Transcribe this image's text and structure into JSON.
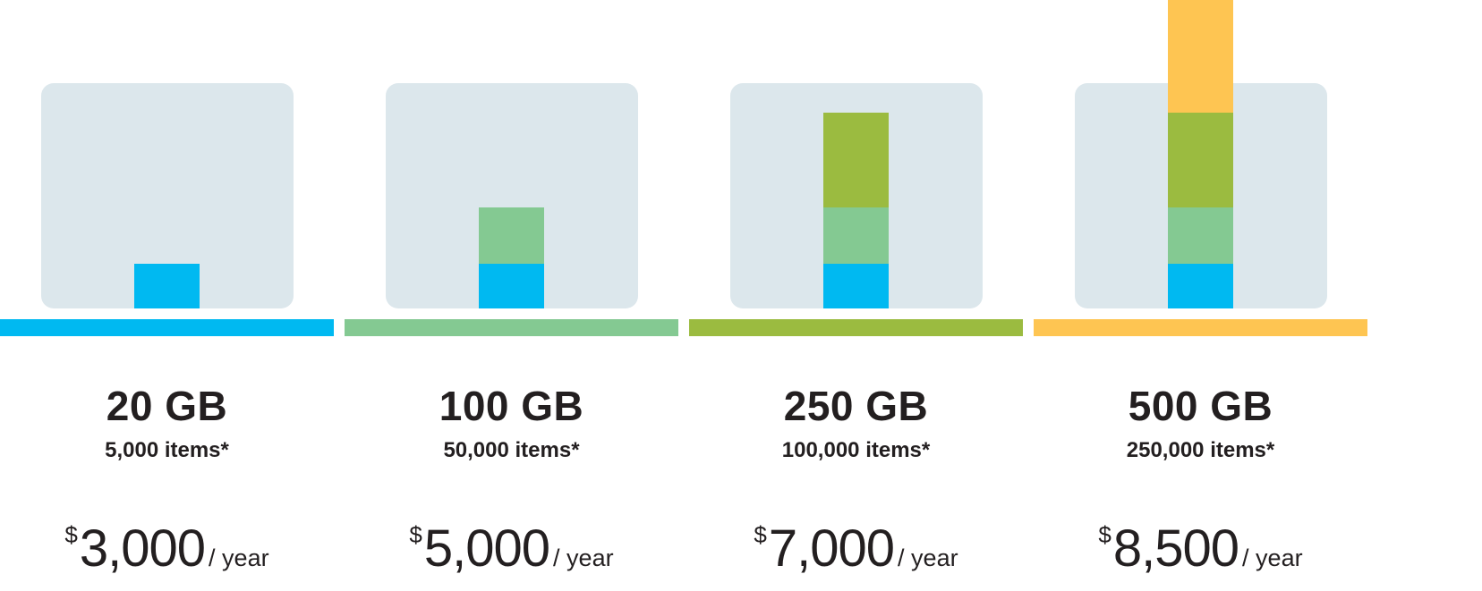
{
  "colors": {
    "tile": "#dce7ec",
    "tier1": "#00b9f1",
    "tier2": "#84c992",
    "tier3": "#9bbb40",
    "tier4": "#fec552",
    "text": "#231f20"
  },
  "plans": [
    {
      "storage": "20 GB",
      "items": "5,000 items*",
      "currency": "$",
      "price": "3,000",
      "period": "/ year",
      "color": "#00b9f1",
      "segments": [
        {
          "color": "#00b9f1",
          "share": 0.2
        }
      ]
    },
    {
      "storage": "100 GB",
      "items": "50,000 items*",
      "currency": "$",
      "price": "5,000",
      "period": "/ year",
      "color": "#84c992",
      "segments": [
        {
          "color": "#00b9f1",
          "share": 0.2
        },
        {
          "color": "#84c992",
          "share": 0.25
        }
      ]
    },
    {
      "storage": "250 GB",
      "items": "100,000 items*",
      "currency": "$",
      "price": "7,000",
      "period": "/ year",
      "color": "#9bbb40",
      "segments": [
        {
          "color": "#00b9f1",
          "share": 0.2
        },
        {
          "color": "#84c992",
          "share": 0.25
        },
        {
          "color": "#9bbb40",
          "share": 0.42
        }
      ]
    },
    {
      "storage": "500 GB",
      "items": "250,000 items*",
      "currency": "$",
      "price": "8,500",
      "period": "/ year",
      "color": "#fec552",
      "segments": [
        {
          "color": "#00b9f1",
          "share": 0.2
        },
        {
          "color": "#84c992",
          "share": 0.25
        },
        {
          "color": "#9bbb40",
          "share": 0.42
        },
        {
          "color": "#fec552",
          "share": 0.5
        }
      ]
    }
  ]
}
